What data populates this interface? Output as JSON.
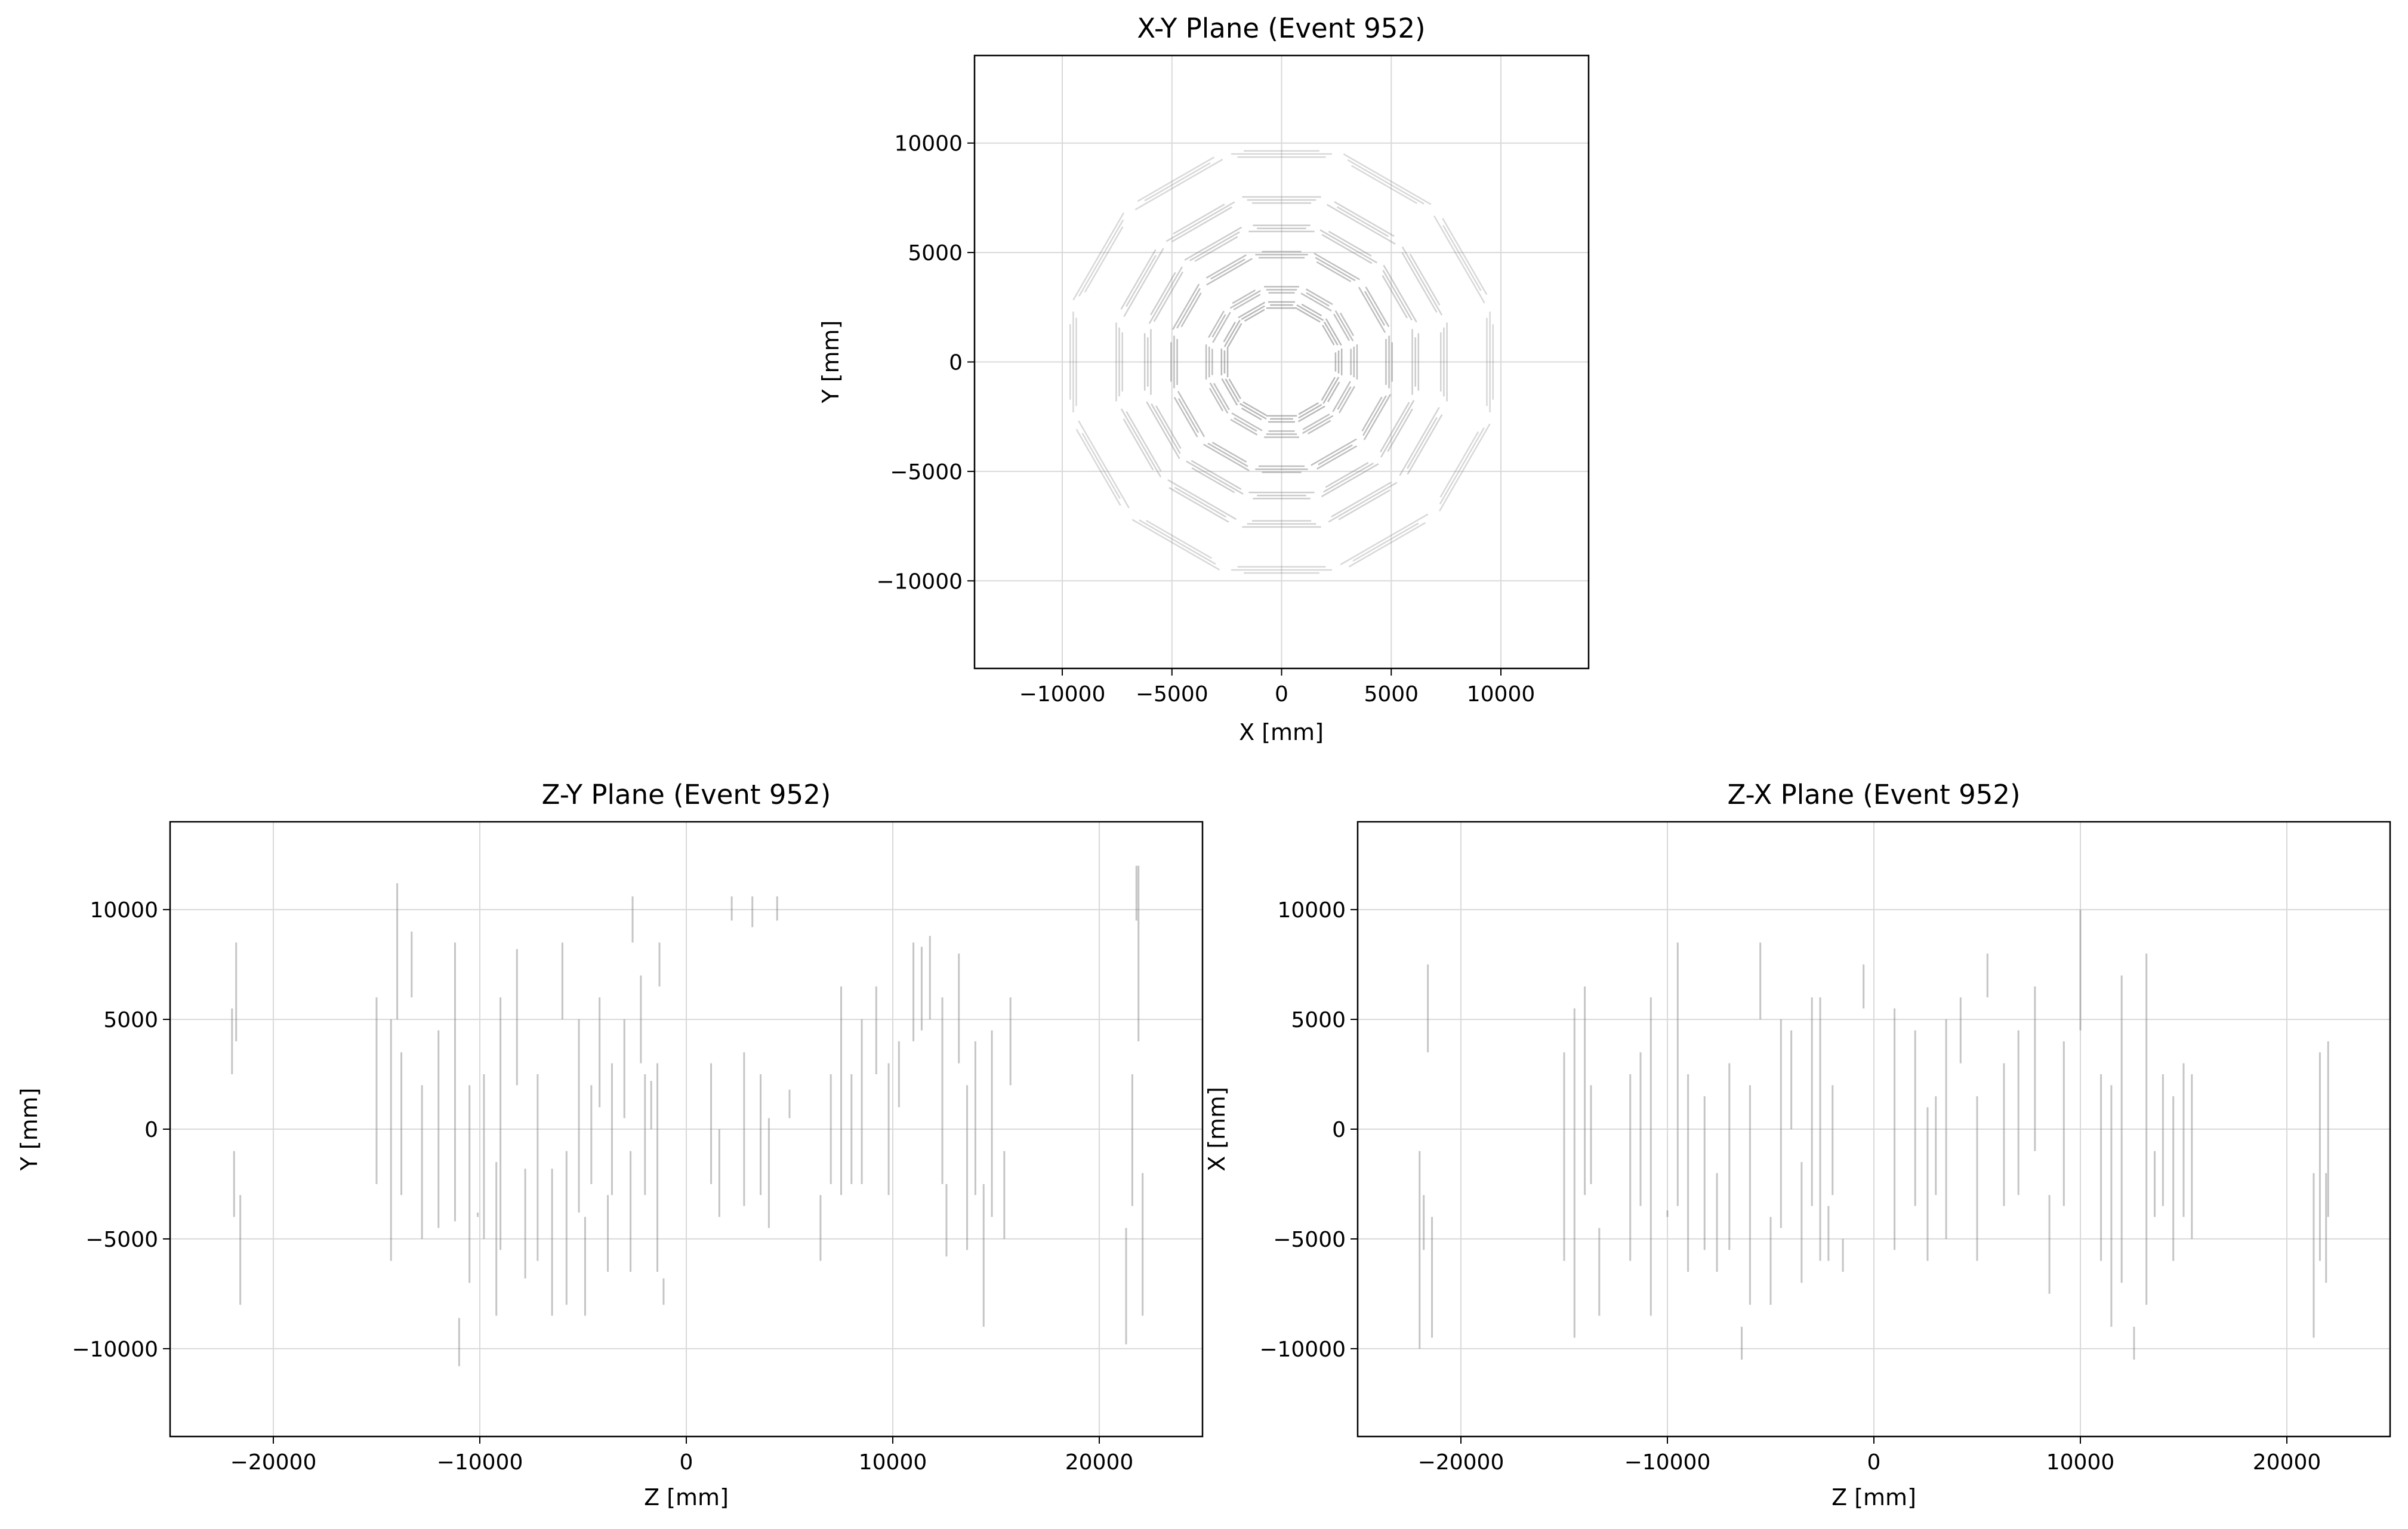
{
  "figure": {
    "background": "#ffffff",
    "segment_color": "#7f7f7f",
    "grid_color": "#d9d9d9"
  },
  "chart_data": [
    {
      "type": "line",
      "title": "X-Y Plane (Event 952)",
      "xlabel": "X [mm]",
      "ylabel": "Y [mm]",
      "xlim": [
        -14000,
        14000
      ],
      "ylim": [
        -14000,
        14000
      ],
      "xticks": [
        -10000,
        -5000,
        0,
        5000,
        10000
      ],
      "yticks": [
        -10000,
        -5000,
        0,
        5000,
        10000
      ],
      "xtick_labels": [
        "−10000",
        "−5000",
        "0",
        "5000",
        "10000"
      ],
      "ytick_labels": [
        "−10000",
        "−5000",
        "0",
        "5000",
        "10000"
      ],
      "grid": true,
      "legend": "none",
      "description_of_marks": "muon chamber hit segments arranged in concentric dodecagonal rings",
      "rings": [
        {
          "radius": 2600,
          "sides": 12,
          "seg_half_len": 700,
          "alpha": 0.55
        },
        {
          "radius": 3300,
          "sides": 12,
          "seg_half_len": 800,
          "alpha": 0.5
        },
        {
          "radius": 4900,
          "sides": 12,
          "seg_half_len": 1200,
          "alpha": 0.5
        },
        {
          "radius": 6100,
          "sides": 12,
          "seg_half_len": 1500,
          "alpha": 0.4
        },
        {
          "radius": 7400,
          "sides": 12,
          "seg_half_len": 1800,
          "alpha": 0.35
        },
        {
          "radius": 9500,
          "sides": 12,
          "seg_half_len": 2300,
          "alpha": 0.3
        }
      ]
    },
    {
      "type": "line",
      "title": "Z-Y Plane (Event 952)",
      "xlabel": "Z [mm]",
      "ylabel": "Y [mm]",
      "xlim": [
        -25000,
        25000
      ],
      "ylim": [
        -14000,
        14000
      ],
      "xticks": [
        -20000,
        -10000,
        0,
        10000,
        20000
      ],
      "yticks": [
        -10000,
        -5000,
        0,
        5000,
        10000
      ],
      "xtick_labels": [
        "−20000",
        "−10000",
        "0",
        "10000",
        "20000"
      ],
      "ytick_labels": [
        "−10000",
        "−5000",
        "0",
        "5000",
        "10000"
      ],
      "grid": true,
      "legend": "none",
      "segments": [
        [
          -22000,
          2500,
          5500
        ],
        [
          -21800,
          4000,
          8500
        ],
        [
          -21600,
          -8000,
          -3000
        ],
        [
          -21900,
          -4000,
          -1000
        ],
        [
          -15000,
          -2500,
          6000
        ],
        [
          -14300,
          -6000,
          5000
        ],
        [
          -14000,
          5000,
          11200
        ],
        [
          -13800,
          -3000,
          3500
        ],
        [
          -13300,
          6000,
          9000
        ],
        [
          -12800,
          -5000,
          2000
        ],
        [
          -12000,
          -4500,
          4500
        ],
        [
          -11200,
          -4200,
          8500
        ],
        [
          -11000,
          -10800,
          -8600
        ],
        [
          -10500,
          -7000,
          2000
        ],
        [
          -10100,
          -4000,
          -3800
        ],
        [
          -9800,
          -5000,
          2500
        ],
        [
          -9200,
          -8500,
          -1500
        ],
        [
          -9000,
          -5500,
          6000
        ],
        [
          -8200,
          2000,
          8200
        ],
        [
          -7800,
          -6800,
          -1800
        ],
        [
          -7200,
          -6000,
          2500
        ],
        [
          -6500,
          -8500,
          -1800
        ],
        [
          -6000,
          5000,
          8500
        ],
        [
          -5800,
          -8000,
          -1000
        ],
        [
          -5200,
          -3800,
          5000
        ],
        [
          -4900,
          -8500,
          -4000
        ],
        [
          -4600,
          -2500,
          2000
        ],
        [
          -4200,
          1000,
          6000
        ],
        [
          -3800,
          -6500,
          -3000
        ],
        [
          -3600,
          -3000,
          3000
        ],
        [
          -3000,
          500,
          5000
        ],
        [
          -2700,
          -6500,
          -1000
        ],
        [
          -2200,
          3000,
          7000
        ],
        [
          -2000,
          -3000,
          2500
        ],
        [
          -1700,
          0,
          2200
        ],
        [
          -1400,
          -6500,
          3000
        ],
        [
          -1100,
          -8000,
          -6800
        ],
        [
          -1300,
          6500,
          8500
        ],
        [
          -2600,
          8500,
          10600
        ],
        [
          1200,
          -2500,
          3000
        ],
        [
          1600,
          -4000,
          0
        ],
        [
          2200,
          9500,
          10600
        ],
        [
          2800,
          -3500,
          3500
        ],
        [
          3200,
          9200,
          10600
        ],
        [
          3600,
          -3000,
          2500
        ],
        [
          4000,
          -4500,
          500
        ],
        [
          4400,
          9500,
          10600
        ],
        [
          5000,
          500,
          1800
        ],
        [
          6500,
          -6000,
          -3000
        ],
        [
          7000,
          -2500,
          2500
        ],
        [
          7500,
          -3000,
          6500
        ],
        [
          8000,
          -2500,
          2500
        ],
        [
          8500,
          -2500,
          5000
        ],
        [
          9200,
          2500,
          6500
        ],
        [
          9800,
          -3000,
          3000
        ],
        [
          10300,
          1000,
          4000
        ],
        [
          11000,
          4000,
          8500
        ],
        [
          11400,
          4500,
          8300
        ],
        [
          11800,
          5000,
          8800
        ],
        [
          12400,
          -2500,
          6000
        ],
        [
          12600,
          -5800,
          -2500
        ],
        [
          13200,
          3000,
          8000
        ],
        [
          13600,
          -5500,
          2000
        ],
        [
          14000,
          -3000,
          4000
        ],
        [
          14400,
          -9000,
          -2500
        ],
        [
          14800,
          -4000,
          4500
        ],
        [
          15400,
          -5000,
          -1000
        ],
        [
          15700,
          2000,
          6000
        ],
        [
          21300,
          -9800,
          -4500
        ],
        [
          21600,
          -3500,
          2500
        ],
        [
          21900,
          4000,
          12000
        ],
        [
          22100,
          -8500,
          -2000
        ],
        [
          21800,
          9500,
          12000
        ]
      ]
    },
    {
      "type": "line",
      "title": "Z-X Plane (Event 952)",
      "xlabel": "Z [mm]",
      "ylabel": "X [mm]",
      "xlim": [
        -25000,
        25000
      ],
      "ylim": [
        -14000,
        14000
      ],
      "xticks": [
        -20000,
        -10000,
        0,
        10000,
        20000
      ],
      "yticks": [
        -10000,
        -5000,
        0,
        5000,
        10000
      ],
      "xtick_labels": [
        "−20000",
        "−10000",
        "0",
        "10000",
        "20000"
      ],
      "ytick_labels": [
        "−10000",
        "−5000",
        "0",
        "5000",
        "10000"
      ],
      "grid": true,
      "legend": "none",
      "segments": [
        [
          -22000,
          -10000,
          -1000
        ],
        [
          -21800,
          -5500,
          -3000
        ],
        [
          -21600,
          3500,
          7500
        ],
        [
          -21400,
          -9500,
          -4000
        ],
        [
          -15000,
          -6000,
          3500
        ],
        [
          -14500,
          -9500,
          5500
        ],
        [
          -14000,
          -3000,
          6500
        ],
        [
          -13700,
          -2500,
          2000
        ],
        [
          -13300,
          -8500,
          -4500
        ],
        [
          -11800,
          -6000,
          2500
        ],
        [
          -11300,
          -3500,
          3500
        ],
        [
          -10800,
          -8500,
          6000
        ],
        [
          -10000,
          -4000,
          -3700
        ],
        [
          -9500,
          -3500,
          8500
        ],
        [
          -9000,
          -6500,
          2500
        ],
        [
          -8200,
          -5500,
          1500
        ],
        [
          -7600,
          -6500,
          -2000
        ],
        [
          -7000,
          -5500,
          3000
        ],
        [
          -6400,
          -10500,
          -9000
        ],
        [
          -6000,
          -8000,
          2000
        ],
        [
          -5500,
          5000,
          8500
        ],
        [
          -5000,
          -8000,
          -4000
        ],
        [
          -4500,
          -4500,
          5000
        ],
        [
          -4000,
          0,
          4500
        ],
        [
          -3500,
          -7000,
          -1500
        ],
        [
          -3000,
          -3500,
          6000
        ],
        [
          -2600,
          -6000,
          6000
        ],
        [
          -2200,
          -6000,
          -3500
        ],
        [
          -2000,
          -3000,
          2000
        ],
        [
          -1500,
          -6500,
          -5000
        ],
        [
          -500,
          5500,
          7500
        ],
        [
          1000,
          -5500,
          5500
        ],
        [
          2000,
          -3500,
          4500
        ],
        [
          2600,
          -6000,
          1000
        ],
        [
          3000,
          -3000,
          1500
        ],
        [
          3500,
          -5000,
          5000
        ],
        [
          4200,
          3000,
          6000
        ],
        [
          5000,
          -6000,
          1500
        ],
        [
          5500,
          6000,
          8000
        ],
        [
          6300,
          -3500,
          3000
        ],
        [
          7000,
          -3000,
          4500
        ],
        [
          7800,
          -1000,
          6500
        ],
        [
          8500,
          -7500,
          -3000
        ],
        [
          9200,
          -3500,
          4000
        ],
        [
          10000,
          4500,
          10000
        ],
        [
          11000,
          -6000,
          2500
        ],
        [
          11500,
          -9000,
          2000
        ],
        [
          12000,
          -7000,
          7000
        ],
        [
          12600,
          -10500,
          -9000
        ],
        [
          13200,
          -8000,
          8000
        ],
        [
          13600,
          -4000,
          -1000
        ],
        [
          14000,
          -3500,
          2500
        ],
        [
          14500,
          -6000,
          1500
        ],
        [
          15000,
          -4000,
          3000
        ],
        [
          15400,
          -5000,
          2500
        ],
        [
          21300,
          -9500,
          -2000
        ],
        [
          21600,
          -6000,
          3500
        ],
        [
          21900,
          -7000,
          -2000
        ],
        [
          22000,
          -4000,
          4000
        ]
      ]
    }
  ]
}
